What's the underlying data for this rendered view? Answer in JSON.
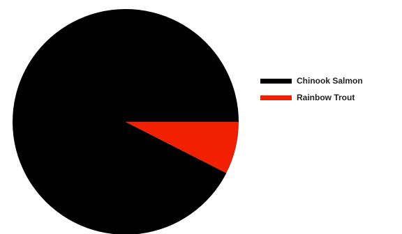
{
  "chart_data": {
    "type": "pie",
    "title": "",
    "categories": [
      "Chinook Salmon",
      "Rainbow Trout"
    ],
    "values": [
      92.5,
      7.5
    ],
    "colors": [
      "#000000",
      "#f22000"
    ],
    "start_angle_deg": 0,
    "direction": "counterclockwise",
    "legend": {
      "position": "right",
      "entries": [
        "Chinook Salmon",
        "Rainbow Trout"
      ]
    }
  }
}
